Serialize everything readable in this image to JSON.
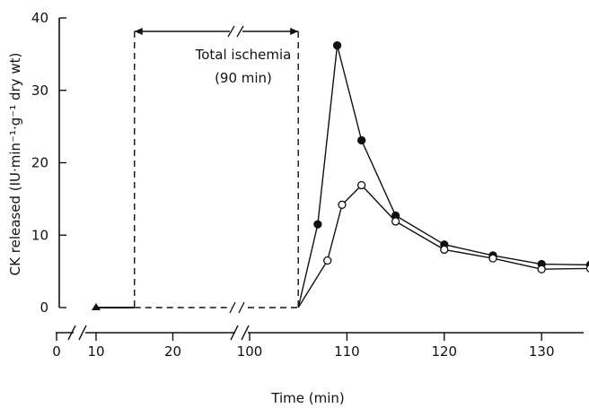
{
  "chart_data": {
    "type": "line",
    "xlabel": "Time (min)",
    "ylabel": "CK released (IU·min⁻¹·g⁻¹ dry wt)",
    "ylim": [
      0,
      40
    ],
    "yticks": [
      0,
      10,
      20,
      30,
      40
    ],
    "xticks": [
      0,
      10,
      20,
      100,
      110,
      120,
      130
    ],
    "x_axis_breaks": [
      "between 0 and 10",
      "between 20 and 100"
    ],
    "grid": false,
    "annotations": {
      "ischemia_label_line1": "Total ischemia",
      "ischemia_label_line2": "(90 min)",
      "ischemia_start_x": 15,
      "ischemia_end_x": 105
    },
    "baseline": {
      "marker": "triangle",
      "points": [
        [
          10,
          0
        ]
      ],
      "solid_segment": [
        10,
        15
      ],
      "dashed_segment": [
        15,
        105
      ]
    },
    "series": [
      {
        "marker": "filled-circle",
        "points": [
          [
            105,
            0
          ],
          [
            107,
            11.5
          ],
          [
            109,
            36.2
          ],
          [
            111.5,
            23.1
          ],
          [
            115,
            12.7
          ],
          [
            120,
            8.7
          ],
          [
            125,
            7.2
          ],
          [
            130,
            6.0
          ],
          [
            135,
            5.9
          ]
        ]
      },
      {
        "marker": "open-circle",
        "points": [
          [
            105,
            0
          ],
          [
            108,
            6.5
          ],
          [
            109.5,
            14.2
          ],
          [
            111.5,
            16.9
          ],
          [
            115,
            11.9
          ],
          [
            120,
            8.0
          ],
          [
            125,
            6.8
          ],
          [
            130,
            5.3
          ],
          [
            135,
            5.4
          ]
        ]
      }
    ]
  }
}
